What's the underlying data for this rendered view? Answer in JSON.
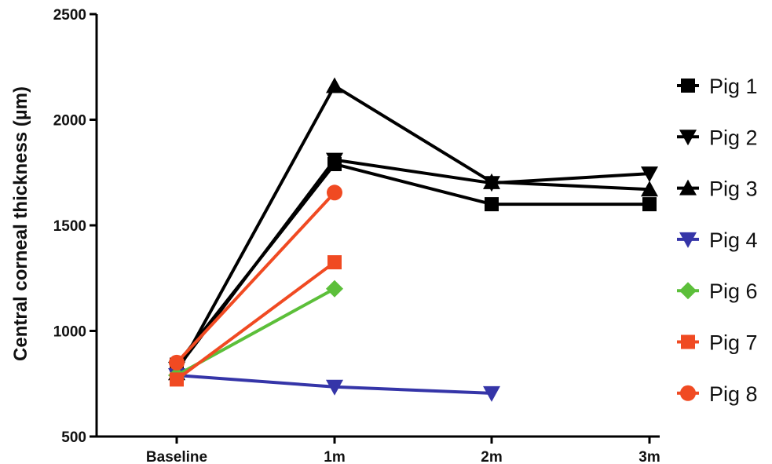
{
  "chart_data": {
    "type": "line",
    "title": "",
    "xlabel": "",
    "ylabel": "Central corneal thickness (µm)",
    "categories": [
      "Baseline",
      "1m",
      "2m",
      "3m"
    ],
    "ylim": [
      500,
      2500
    ],
    "yticks": [
      "500",
      "1000",
      "1500",
      "2000",
      "2500"
    ],
    "grid": false,
    "legend_position": "right",
    "series": [
      {
        "name": "Pig 1",
        "marker": "square",
        "color": "#000000",
        "values": [
          840,
          1790,
          1600,
          1600
        ]
      },
      {
        "name": "Pig 2",
        "marker": "triangle-down",
        "color": "#000000",
        "values": [
          820,
          1810,
          1700,
          1745
        ]
      },
      {
        "name": "Pig 3",
        "marker": "triangle-up",
        "color": "#000000",
        "values": [
          800,
          2160,
          1705,
          1670
        ]
      },
      {
        "name": "Pig 4",
        "marker": "triangle-down",
        "color": "#3535a8",
        "values": [
          790,
          735,
          705,
          null
        ]
      },
      {
        "name": "Pig 6",
        "marker": "diamond",
        "color": "#5cbf3a",
        "values": [
          790,
          1200,
          null,
          null
        ]
      },
      {
        "name": "Pig 7",
        "marker": "square",
        "color": "#f04a22",
        "values": [
          770,
          1325,
          null,
          null
        ]
      },
      {
        "name": "Pig 8",
        "marker": "circle",
        "color": "#f04a22",
        "values": [
          850,
          1655,
          null,
          null
        ]
      }
    ]
  }
}
